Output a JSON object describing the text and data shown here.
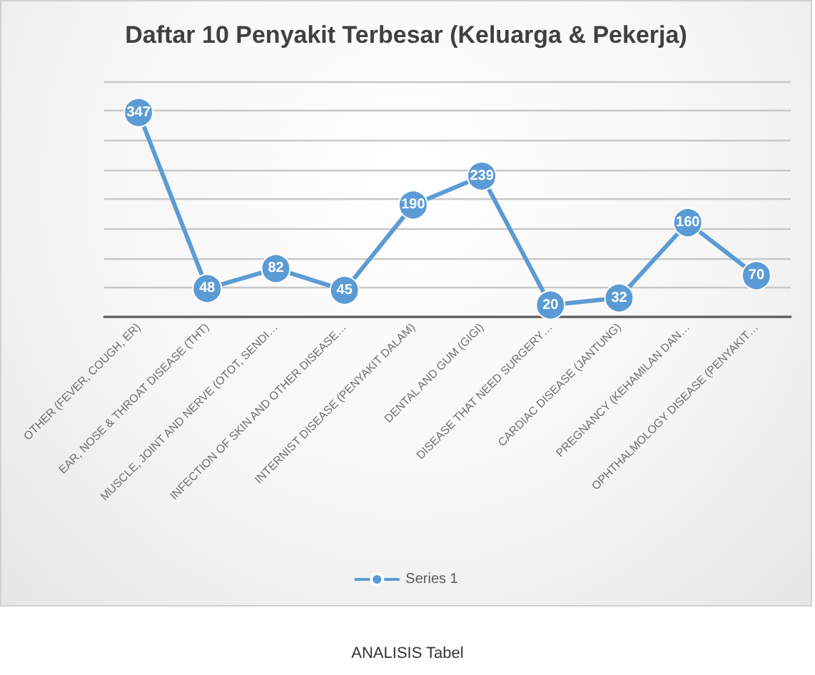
{
  "chart_data": {
    "type": "line",
    "title": "Daftar 10 Penyakit Terbesar (Keluarga & Pekerja)",
    "categories": [
      "OTHER (FEVER, COUGH, ER)",
      "EAR, NOSE & THROAT DISEASE (THT)",
      "MUSCLE, JOINT AND NERVE (OTOT, SENDI…",
      "INFECTION OF SKIN AND OTHER DISEASE…",
      "INTERNIST DISEASE (PENYAKIT DALAM)",
      "DENTAL AND GUM (GIGI)",
      "DISEASE THAT NEED SURGERY…",
      "CARDIAC DISEASE (JANTUNG)",
      "PREGNANCY (KEHAMILAN DAN…",
      "OPHTHALMOLOGY DISEASE (PENYAKIT…"
    ],
    "series": [
      {
        "name": "Series 1",
        "color": "#5b9bd5",
        "values": [
          347,
          48,
          82,
          45,
          190,
          239,
          20,
          32,
          160,
          70
        ]
      }
    ],
    "ylim": [
      0,
      400
    ],
    "yticks": [
      {
        "value": 0,
        "label": null
      },
      {
        "value": 50,
        "label": null
      },
      {
        "value": 100,
        "label": null
      },
      {
        "value": 150,
        "label": null
      },
      {
        "value": 200,
        "label": null
      },
      {
        "value": 250,
        "label": null
      },
      {
        "value": 300,
        "label": null
      },
      {
        "value": 350,
        "label": null
      },
      {
        "value": 400,
        "label": null
      }
    ],
    "grid": "y",
    "legend": "bottom",
    "tick_labels": "x",
    "data_labels": true,
    "marker": "circle",
    "line_style": "solid",
    "annotations": [
      "ANALISIS Tabel"
    ]
  }
}
